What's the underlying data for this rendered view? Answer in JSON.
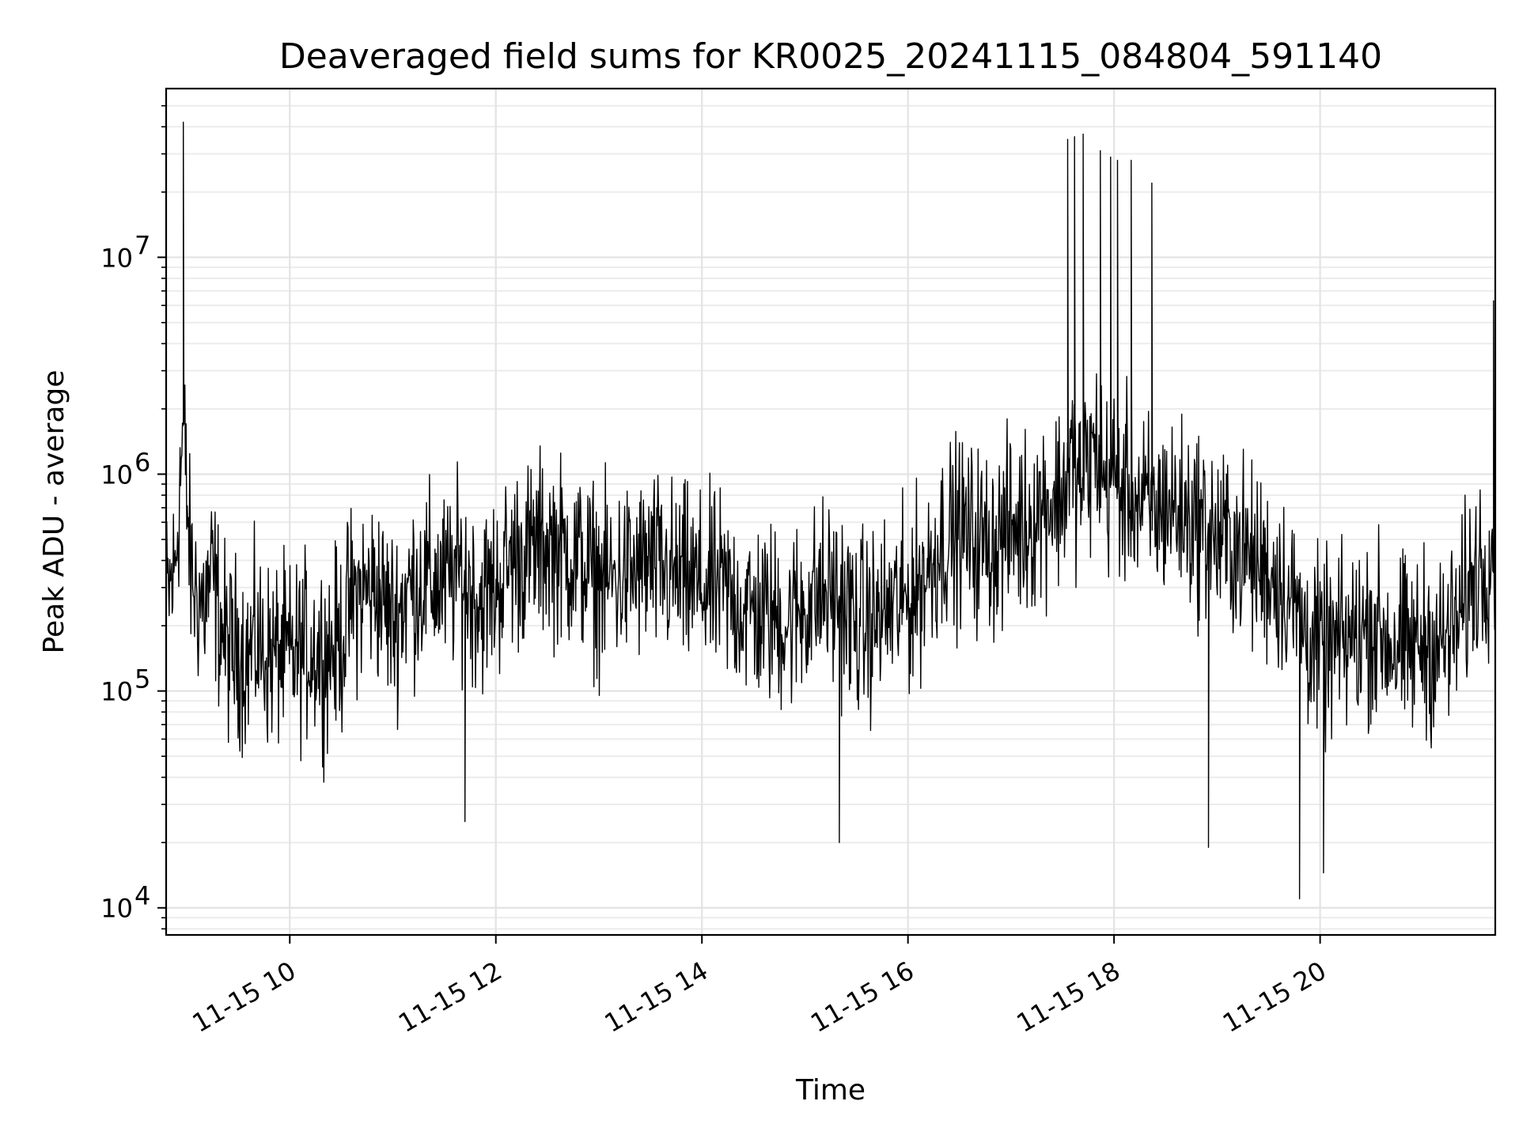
{
  "chart_data": {
    "type": "line",
    "title": "Deaveraged field sums for KR0025_20241115_084804_591140",
    "xlabel": "Time",
    "ylabel": "Peak ADU - average",
    "yscale": "log",
    "ylim": [
      7500,
      60000000
    ],
    "xlim": [
      "11-15 08:48",
      "11-15 21:42"
    ],
    "grid": true,
    "line_color": "#000000",
    "x_ticks": [
      "11-15 10",
      "11-15 12",
      "11-15 14",
      "11-15 16",
      "11-15 18",
      "11-15 20"
    ],
    "y_ticks": [
      {
        "base": "10",
        "exp": "4",
        "value": 10000
      },
      {
        "base": "10",
        "exp": "5",
        "value": 100000
      },
      {
        "base": "10",
        "exp": "6",
        "value": 1000000
      },
      {
        "base": "10",
        "exp": "7",
        "value": 10000000
      }
    ],
    "series": [
      {
        "x": [
          "11-15 08:48",
          "11-15 08:53",
          "11-15 08:58",
          "11-15 09:02",
          "11-15 09:05",
          "11-15 09:10",
          "11-15 09:15",
          "11-15 09:20",
          "11-15 09:25",
          "11-15 09:30",
          "11-15 09:35",
          "11-15 09:40",
          "11-15 09:45",
          "11-15 09:50",
          "11-15 09:55",
          "11-15 10:00",
          "11-15 10:10",
          "11-15 10:20",
          "11-15 10:30",
          "11-15 10:35",
          "11-15 10:40",
          "11-15 10:50",
          "11-15 11:00",
          "11-15 11:10",
          "11-15 11:20",
          "11-15 11:30",
          "11-15 11:40",
          "11-15 11:50",
          "11-15 12:00",
          "11-15 12:10",
          "11-15 12:20",
          "11-15 12:30",
          "11-15 12:40",
          "11-15 12:50",
          "11-15 13:00",
          "11-15 13:10",
          "11-15 13:20",
          "11-15 13:30",
          "11-15 13:40",
          "11-15 13:50",
          "11-15 14:00",
          "11-15 14:10",
          "11-15 14:20",
          "11-15 14:30",
          "11-15 14:40",
          "11-15 14:50",
          "11-15 15:00",
          "11-15 15:10",
          "11-15 15:20",
          "11-15 15:30",
          "11-15 15:40",
          "11-15 15:50",
          "11-15 16:00",
          "11-15 16:10",
          "11-15 16:20",
          "11-15 16:30",
          "11-15 16:40",
          "11-15 16:50",
          "11-15 17:00",
          "11-15 17:10",
          "11-15 17:20",
          "11-15 17:30",
          "11-15 17:35",
          "11-15 17:40",
          "11-15 17:45",
          "11-15 17:50",
          "11-15 17:55",
          "11-15 18:00",
          "11-15 18:05",
          "11-15 18:10",
          "11-15 18:15",
          "11-15 18:20",
          "11-15 18:25",
          "11-15 18:30",
          "11-15 18:40",
          "11-15 18:50",
          "11-15 19:00",
          "11-15 19:10",
          "11-15 19:20",
          "11-15 19:30",
          "11-15 19:40",
          "11-15 19:50",
          "11-15 20:00",
          "11-15 20:10",
          "11-15 20:20",
          "11-15 20:30",
          "11-15 20:40",
          "11-15 20:50",
          "11-15 21:00",
          "11-15 21:10",
          "11-15 21:20",
          "11-15 21:30",
          "11-15 21:40"
        ],
        "y": [
          260000,
          350000,
          1700000,
          380000,
          290000,
          250000,
          340000,
          200000,
          150000,
          160000,
          140000,
          170000,
          150000,
          145000,
          150000,
          140000,
          160000,
          150000,
          170000,
          250000,
          280000,
          300000,
          210000,
          300000,
          320000,
          310000,
          360000,
          260000,
          300000,
          420000,
          430000,
          480000,
          430000,
          390000,
          320000,
          330000,
          350000,
          380000,
          350000,
          320000,
          300000,
          300000,
          260000,
          230000,
          220000,
          210000,
          250000,
          280000,
          270000,
          200000,
          210000,
          240000,
          260000,
          340000,
          500000,
          550000,
          500000,
          480000,
          560000,
          600000,
          750000,
          800000,
          1200000,
          900000,
          1100000,
          1300000,
          900000,
          1000000,
          800000,
          900000,
          700000,
          700000,
          650000,
          750000,
          650000,
          600000,
          500000,
          480000,
          400000,
          360000,
          300000,
          200000,
          150000,
          160000,
          180000,
          200000,
          170000,
          150000,
          170000,
          160000,
          200000,
          350000,
          450000
        ],
        "spikes": [
          {
            "x": "11-15 08:58",
            "y": 42000000
          },
          {
            "x": "11-15 11:42",
            "y": 25000
          },
          {
            "x": "11-15 15:20",
            "y": 20000
          },
          {
            "x": "11-15 17:33",
            "y": 35000000
          },
          {
            "x": "11-15 17:37",
            "y": 36000000
          },
          {
            "x": "11-15 17:42",
            "y": 37000000
          },
          {
            "x": "11-15 17:52",
            "y": 31000000
          },
          {
            "x": "11-15 17:58",
            "y": 29000000
          },
          {
            "x": "11-15 18:02",
            "y": 28000000
          },
          {
            "x": "11-15 18:10",
            "y": 28000000
          },
          {
            "x": "11-15 18:22",
            "y": 22000000
          },
          {
            "x": "11-15 18:55",
            "y": 19000
          },
          {
            "x": "11-15 19:48",
            "y": 11000
          },
          {
            "x": "11-15 20:02",
            "y": 14500
          },
          {
            "x": "11-15 21:41",
            "y": 6300000
          }
        ]
      }
    ]
  }
}
